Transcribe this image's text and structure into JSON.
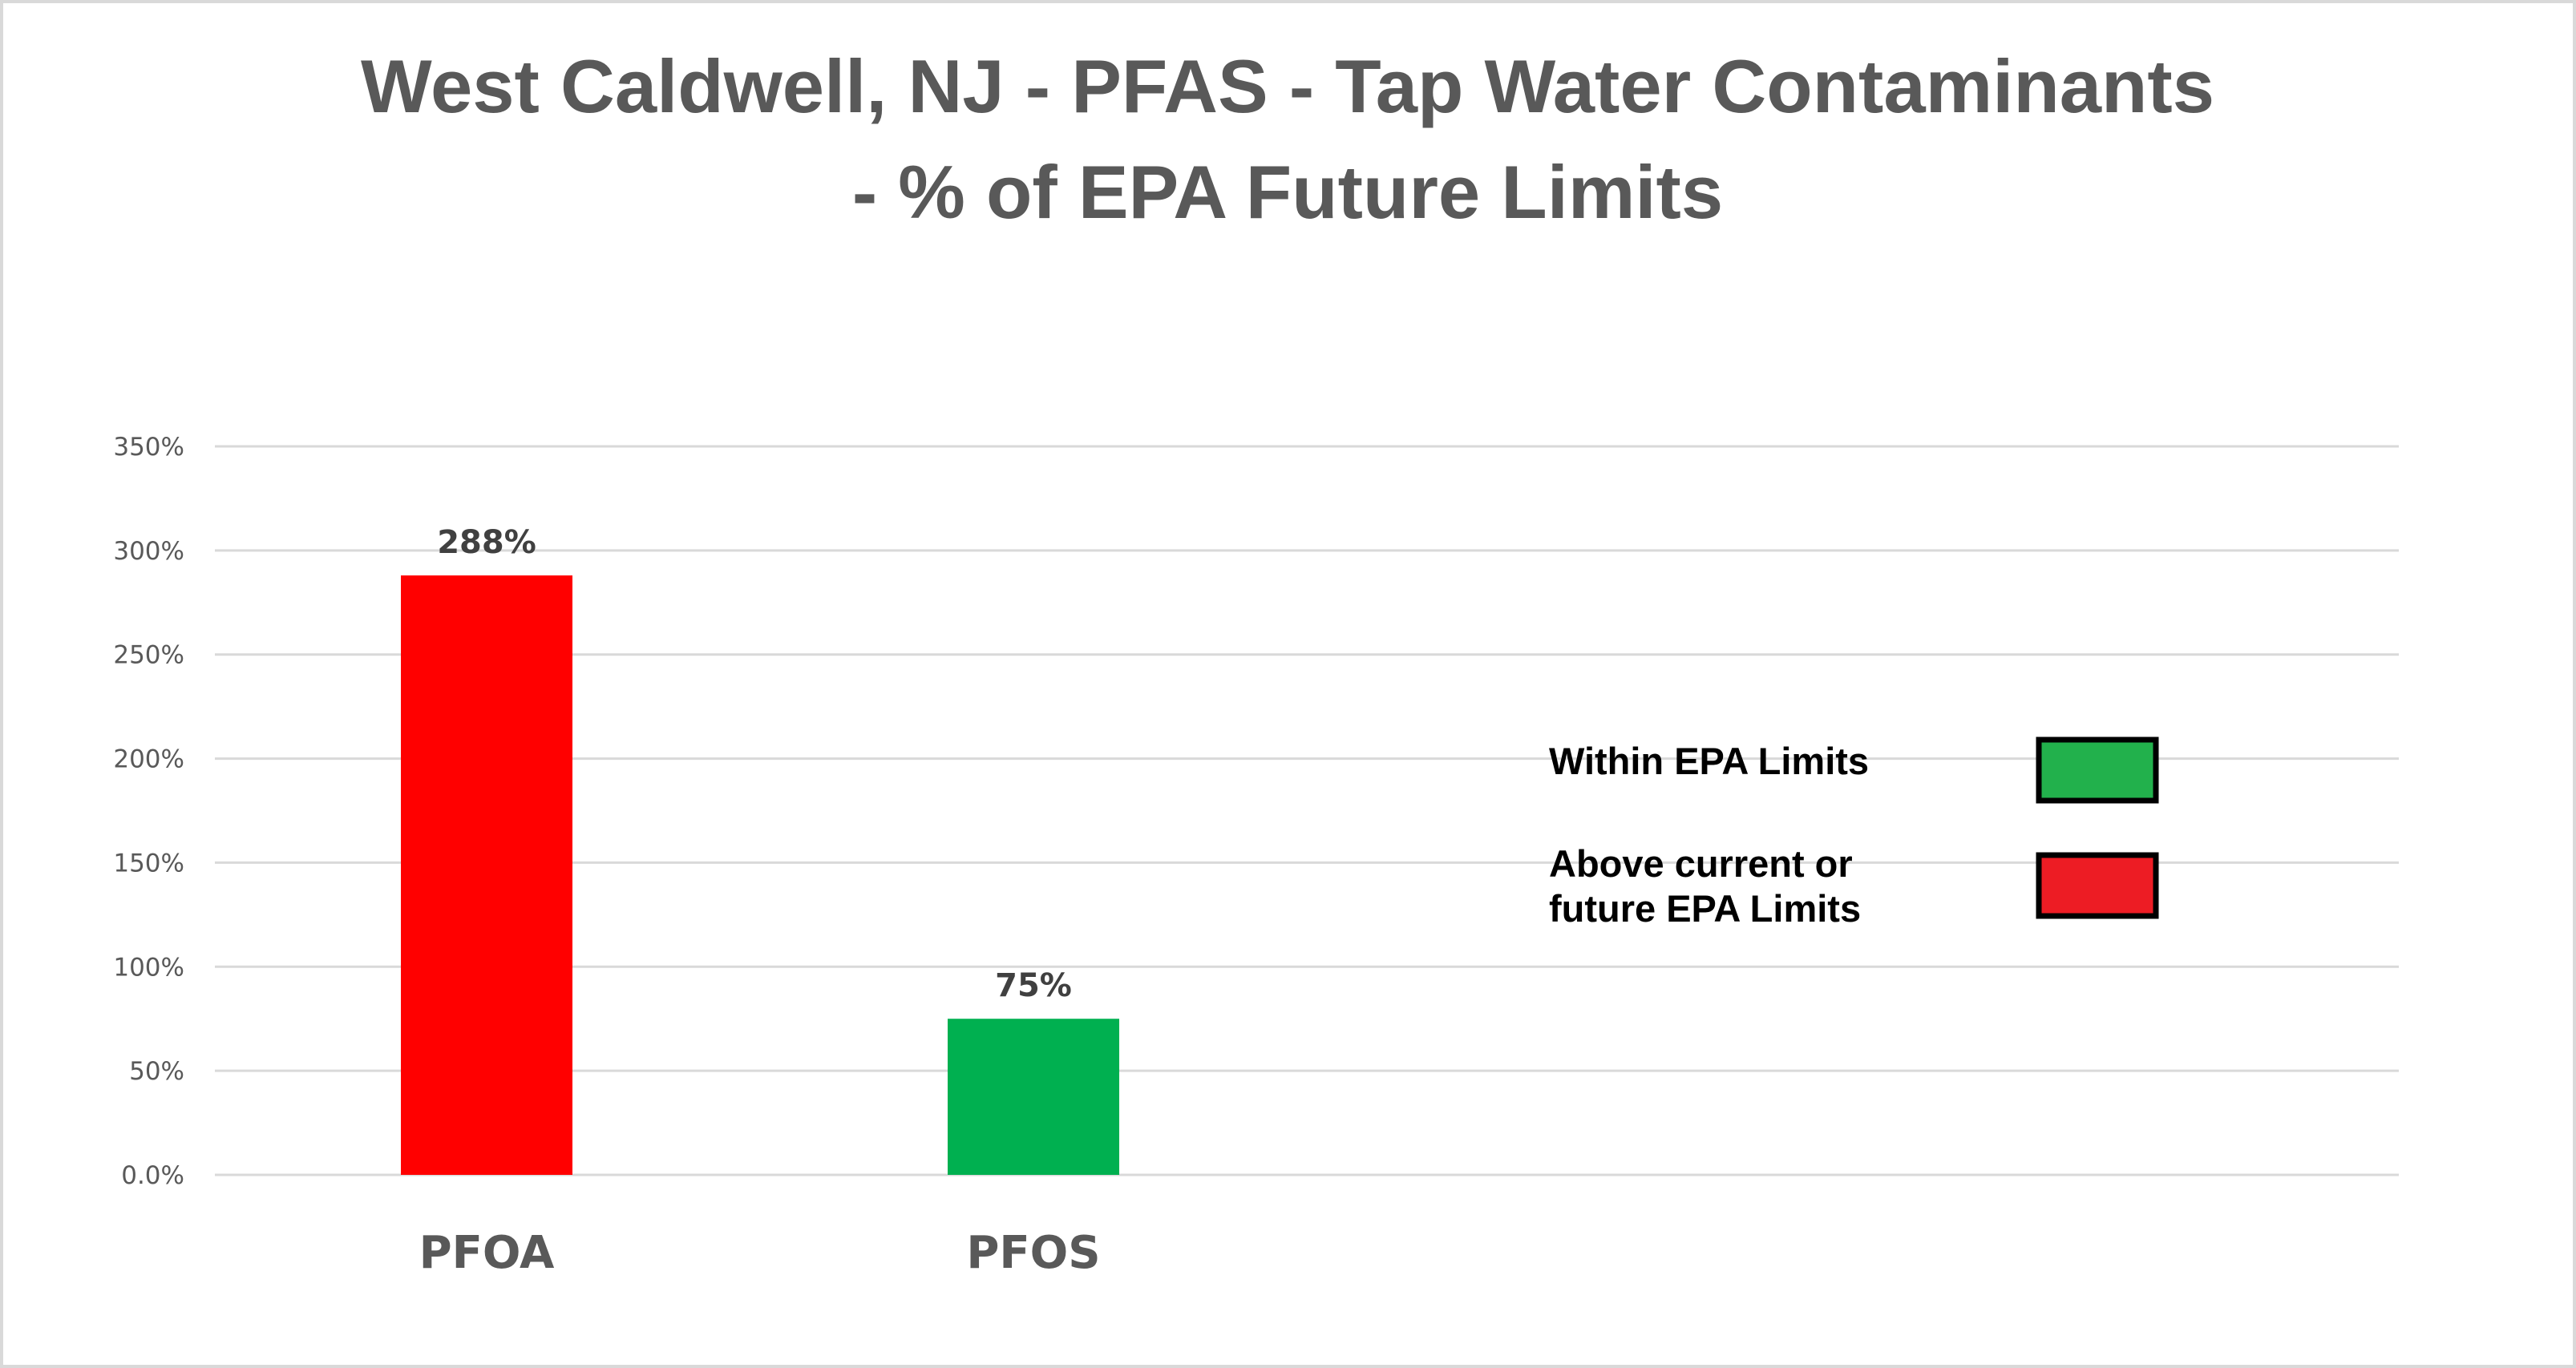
{
  "chart_data": {
    "type": "bar",
    "title": [
      "West Caldwell, NJ - PFAS - Tap Water Contaminants",
      "- % of EPA Future Limits"
    ],
    "categories": [
      "PFOA",
      "PFOS"
    ],
    "values": [
      288,
      75
    ],
    "data_labels": [
      "288%",
      "75%"
    ],
    "bar_colors": [
      "#FF0000",
      "#00B050"
    ],
    "xlabel": "",
    "ylabel": "",
    "ylim": [
      0,
      350
    ],
    "yticks": [
      0,
      50,
      100,
      150,
      200,
      250,
      300,
      350
    ],
    "ytick_labels": [
      "0.0%",
      "50%",
      "100%",
      "150%",
      "200%",
      "250%",
      "300%",
      "350%"
    ],
    "grid": true,
    "legend_placement": "right",
    "legend": [
      {
        "lines": [
          "Within  EPA Limits"
        ],
        "color": "#22B14C"
      },
      {
        "lines": [
          "Above current or",
          "future EPA Limits"
        ],
        "color": "#ED1C24"
      }
    ]
  }
}
